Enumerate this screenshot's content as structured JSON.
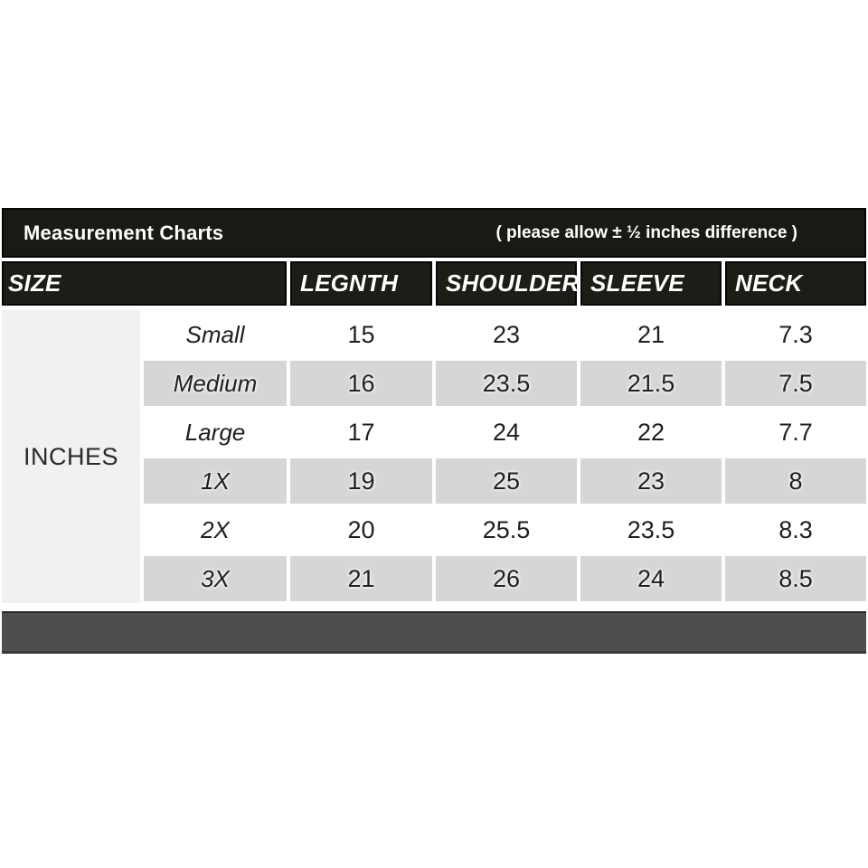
{
  "header": {
    "title": "Measurement Charts",
    "note": "( please allow ± ½ inches difference )"
  },
  "table": {
    "unit_label": "INCHES",
    "columns": [
      "SIZE",
      "LEGNTH",
      "SHOULDER",
      "SLEEVE",
      "NECK"
    ],
    "rows": [
      {
        "label": "Small",
        "values": [
          "15",
          "23",
          "21",
          "7.3"
        ],
        "shaded": false
      },
      {
        "label": "Medium",
        "values": [
          "16",
          "23.5",
          "21.5",
          "7.5"
        ],
        "shaded": true
      },
      {
        "label": "Large",
        "values": [
          "17",
          "24",
          "22",
          "7.7"
        ],
        "shaded": false
      },
      {
        "label": "1X",
        "values": [
          "19",
          "25",
          "23",
          "8"
        ],
        "shaded": true
      },
      {
        "label": "2X",
        "values": [
          "20",
          "25.5",
          "23.5",
          "8.3"
        ],
        "shaded": false
      },
      {
        "label": "3X",
        "values": [
          "21",
          "26",
          "24",
          "8.5"
        ],
        "shaded": true
      }
    ]
  },
  "colors": {
    "bar_dark": "#1b1914",
    "header_cell_dark": "#1e1c16",
    "shaded_row": "#d6d6d6",
    "unit_column_bg": "#f1f1ef",
    "footer_gray": "#4e4e4e",
    "text_light": "#ffffff",
    "text_dark": "#1f1f1f"
  },
  "chart_data": {
    "type": "table",
    "title": "Measurement Charts",
    "note": "( please allow ± ½ inches difference )",
    "unit": "INCHES",
    "columns": [
      "SIZE",
      "LEGNTH",
      "SHOULDER",
      "SLEEVE",
      "NECK"
    ],
    "rows": [
      [
        "Small",
        15,
        23,
        21,
        7.3
      ],
      [
        "Medium",
        16,
        23.5,
        21.5,
        7.5
      ],
      [
        "Large",
        17,
        24,
        22,
        7.7
      ],
      [
        "1X",
        19,
        25,
        23,
        8
      ],
      [
        "2X",
        20,
        25.5,
        23.5,
        8.3
      ],
      [
        "3X",
        21,
        26,
        24,
        8.5
      ]
    ]
  }
}
